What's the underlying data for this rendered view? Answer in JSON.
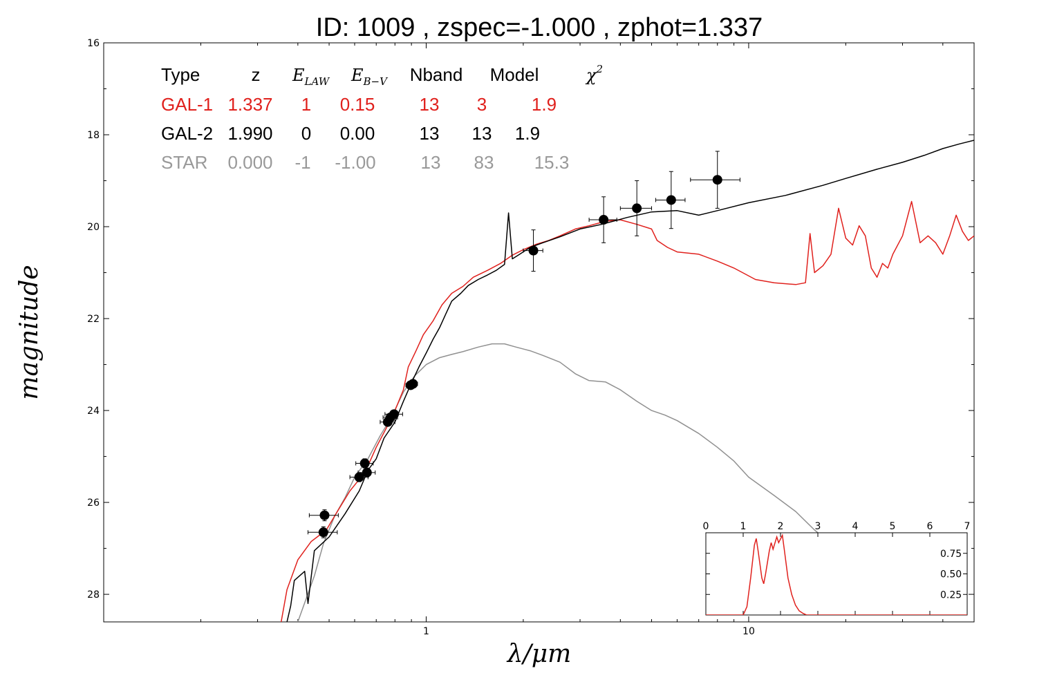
{
  "chart_data": {
    "type": "line",
    "title": "ID:  1009  , zspec=-1.000 , zphot=1.337",
    "xlabel": "λ/μm",
    "ylabel": "magnitude",
    "x_scale": "log",
    "xlim": [
      0.1,
      50
    ],
    "ylim": [
      28.6,
      16
    ],
    "y_inverted": true,
    "x_ticks": [
      {
        "value": 1,
        "label": "1"
      },
      {
        "value": 10,
        "label": "10"
      }
    ],
    "y_ticks": [
      {
        "value": 16,
        "label": "16"
      },
      {
        "value": 18,
        "label": "18"
      },
      {
        "value": 20,
        "label": "20"
      },
      {
        "value": 22,
        "label": "22"
      },
      {
        "value": 24,
        "label": "24"
      },
      {
        "value": 26,
        "label": "26"
      },
      {
        "value": 28,
        "label": "28"
      }
    ],
    "colors": {
      "gal1": "#e0201c",
      "gal2": "#000000",
      "star": "#909090",
      "points": "#000000"
    },
    "fit_table": {
      "headers": [
        {
          "text": "Type",
          "math": false
        },
        {
          "text": "z",
          "math": false
        },
        {
          "text": "E",
          "sub": "LAW",
          "math": true
        },
        {
          "text": "E",
          "sub": "B−V",
          "math": true
        },
        {
          "text": "Nband",
          "math": false
        },
        {
          "text": "Model",
          "math": false
        },
        {
          "text": "χ",
          "sup": "2",
          "math": true
        }
      ],
      "rows": [
        {
          "color": "#e0201c",
          "cells": [
            "GAL-1",
            "1.337",
            "1",
            "0.15",
            "13",
            "3",
            "1.9"
          ]
        },
        {
          "color": "#000000",
          "cells": [
            "GAL-2",
            "1.990",
            "0",
            "0.00",
            "13",
            "13",
            "1.9"
          ]
        },
        {
          "color": "#999999",
          "cells": [
            "STAR",
            "0.000",
            "-1",
            "-1.00",
            "13",
            "83",
            "15.3"
          ]
        }
      ]
    },
    "observations": [
      {
        "x": 0.48,
        "y": 26.65,
        "xerr": 0.05,
        "yerr": 0.12
      },
      {
        "x": 0.484,
        "y": 26.28,
        "xerr": 0.05,
        "yerr": 0.12
      },
      {
        "x": 0.62,
        "y": 25.45,
        "xerr": 0.04,
        "yerr": 0.1
      },
      {
        "x": 0.645,
        "y": 25.15,
        "xerr": 0.04,
        "yerr": 0.1
      },
      {
        "x": 0.655,
        "y": 25.35,
        "xerr": 0.04,
        "yerr": 0.1
      },
      {
        "x": 0.76,
        "y": 24.25,
        "xerr": 0.04,
        "yerr": 0.08
      },
      {
        "x": 0.775,
        "y": 24.15,
        "xerr": 0.04,
        "yerr": 0.08
      },
      {
        "x": 0.795,
        "y": 24.08,
        "xerr": 0.05,
        "yerr": 0.08
      },
      {
        "x": 0.895,
        "y": 23.45,
        "xerr": 0.03,
        "yerr": 0.06
      },
      {
        "x": 0.91,
        "y": 23.42,
        "xerr": 0.03,
        "yerr": 0.06
      },
      {
        "x": 2.15,
        "y": 20.52,
        "xerr": 0.15,
        "yerr": 0.45
      },
      {
        "x": 3.55,
        "y": 19.85,
        "xerr": 0.35,
        "yerr": 0.5
      },
      {
        "x": 4.5,
        "y": 19.6,
        "xerr": 0.5,
        "yerr": 0.6
      },
      {
        "x": 5.75,
        "y": 19.42,
        "xerr": 0.6,
        "yerr": 0.62
      },
      {
        "x": 8.0,
        "y": 18.98,
        "xerr": 1.4,
        "yerr": 0.62
      }
    ],
    "series": [
      {
        "name": "GAL-1",
        "color": "#e0201c",
        "points": [
          [
            0.355,
            28.6
          ],
          [
            0.37,
            27.9
          ],
          [
            0.4,
            27.25
          ],
          [
            0.44,
            26.85
          ],
          [
            0.49,
            26.6
          ],
          [
            0.53,
            26.2
          ],
          [
            0.58,
            25.75
          ],
          [
            0.62,
            25.5
          ],
          [
            0.66,
            25.2
          ],
          [
            0.7,
            24.8
          ],
          [
            0.75,
            24.4
          ],
          [
            0.8,
            24.0
          ],
          [
            0.85,
            23.55
          ],
          [
            0.88,
            23.05
          ],
          [
            0.93,
            22.7
          ],
          [
            0.98,
            22.35
          ],
          [
            1.05,
            22.05
          ],
          [
            1.12,
            21.7
          ],
          [
            1.2,
            21.45
          ],
          [
            1.3,
            21.3
          ],
          [
            1.4,
            21.1
          ],
          [
            1.55,
            20.95
          ],
          [
            1.7,
            20.8
          ],
          [
            1.85,
            20.62
          ],
          [
            2.0,
            20.5
          ],
          [
            2.2,
            20.38
          ],
          [
            2.4,
            20.3
          ],
          [
            2.6,
            20.2
          ],
          [
            2.9,
            20.05
          ],
          [
            3.2,
            19.98
          ],
          [
            3.6,
            19.88
          ],
          [
            4.0,
            19.85
          ],
          [
            4.5,
            19.95
          ],
          [
            5.0,
            20.05
          ],
          [
            5.2,
            20.3
          ],
          [
            5.6,
            20.45
          ],
          [
            6.0,
            20.55
          ],
          [
            7.0,
            20.6
          ],
          [
            8.0,
            20.75
          ],
          [
            9.0,
            20.9
          ],
          [
            10.5,
            21.15
          ],
          [
            12.0,
            21.22
          ],
          [
            14.0,
            21.26
          ],
          [
            15.0,
            21.22
          ],
          [
            15.5,
            20.15
          ],
          [
            16.0,
            21.0
          ],
          [
            17.0,
            20.85
          ],
          [
            18.0,
            20.6
          ],
          [
            19.0,
            19.6
          ],
          [
            20.0,
            20.25
          ],
          [
            21.0,
            20.4
          ],
          [
            22.0,
            19.98
          ],
          [
            23.0,
            20.2
          ],
          [
            24.0,
            20.9
          ],
          [
            25.0,
            21.1
          ],
          [
            26.0,
            20.8
          ],
          [
            27.0,
            20.9
          ],
          [
            28.0,
            20.6
          ],
          [
            30.0,
            20.2
          ],
          [
            32.0,
            19.45
          ],
          [
            34.0,
            20.35
          ],
          [
            36.0,
            20.2
          ],
          [
            38.0,
            20.35
          ],
          [
            40.0,
            20.6
          ],
          [
            42.0,
            20.2
          ],
          [
            44.0,
            19.75
          ],
          [
            46.0,
            20.1
          ],
          [
            48.0,
            20.3
          ],
          [
            50.0,
            20.2
          ]
        ]
      },
      {
        "name": "GAL-2",
        "color": "#000000",
        "points": [
          [
            0.37,
            28.6
          ],
          [
            0.38,
            28.25
          ],
          [
            0.39,
            27.7
          ],
          [
            0.42,
            27.5
          ],
          [
            0.43,
            28.2
          ],
          [
            0.45,
            27.05
          ],
          [
            0.5,
            26.75
          ],
          [
            0.56,
            26.25
          ],
          [
            0.62,
            25.75
          ],
          [
            0.66,
            25.3
          ],
          [
            0.7,
            25.05
          ],
          [
            0.74,
            24.6
          ],
          [
            0.8,
            24.25
          ],
          [
            0.85,
            23.8
          ],
          [
            0.9,
            23.4
          ],
          [
            0.95,
            23.05
          ],
          [
            1.0,
            22.75
          ],
          [
            1.05,
            22.45
          ],
          [
            1.1,
            22.2
          ],
          [
            1.15,
            21.9
          ],
          [
            1.2,
            21.62
          ],
          [
            1.28,
            21.45
          ],
          [
            1.35,
            21.28
          ],
          [
            1.45,
            21.15
          ],
          [
            1.55,
            21.05
          ],
          [
            1.65,
            20.95
          ],
          [
            1.75,
            20.82
          ],
          [
            1.8,
            19.7
          ],
          [
            1.85,
            20.7
          ],
          [
            1.95,
            20.6
          ],
          [
            2.1,
            20.45
          ],
          [
            2.3,
            20.35
          ],
          [
            2.6,
            20.22
          ],
          [
            3.0,
            20.05
          ],
          [
            3.5,
            19.95
          ],
          [
            4.2,
            19.8
          ],
          [
            5.0,
            19.68
          ],
          [
            6.0,
            19.65
          ],
          [
            7.0,
            19.75
          ],
          [
            8.0,
            19.65
          ],
          [
            10.0,
            19.48
          ],
          [
            13.0,
            19.32
          ],
          [
            17.0,
            19.1
          ],
          [
            20.0,
            18.95
          ],
          [
            25.0,
            18.75
          ],
          [
            30.0,
            18.6
          ],
          [
            35.0,
            18.45
          ],
          [
            40.0,
            18.3
          ],
          [
            45.0,
            18.2
          ],
          [
            50.0,
            18.12
          ]
        ]
      },
      {
        "name": "STAR",
        "color": "#909090",
        "points": [
          [
            0.4,
            28.6
          ],
          [
            0.45,
            27.6
          ],
          [
            0.48,
            26.9
          ],
          [
            0.52,
            26.3
          ],
          [
            0.56,
            25.9
          ],
          [
            0.6,
            25.45
          ],
          [
            0.66,
            25.05
          ],
          [
            0.72,
            24.55
          ],
          [
            0.78,
            24.15
          ],
          [
            0.85,
            23.6
          ],
          [
            0.92,
            23.25
          ],
          [
            1.0,
            23.0
          ],
          [
            1.1,
            22.85
          ],
          [
            1.2,
            22.78
          ],
          [
            1.3,
            22.72
          ],
          [
            1.45,
            22.62
          ],
          [
            1.6,
            22.55
          ],
          [
            1.75,
            22.55
          ],
          [
            1.9,
            22.62
          ],
          [
            2.1,
            22.7
          ],
          [
            2.3,
            22.8
          ],
          [
            2.6,
            22.95
          ],
          [
            2.9,
            23.2
          ],
          [
            3.2,
            23.35
          ],
          [
            3.6,
            23.38
          ],
          [
            4.0,
            23.55
          ],
          [
            4.5,
            23.8
          ],
          [
            5.0,
            24.0
          ],
          [
            5.5,
            24.1
          ],
          [
            6.0,
            24.22
          ],
          [
            7.0,
            24.5
          ],
          [
            8.0,
            24.8
          ],
          [
            9.0,
            25.1
          ],
          [
            10.0,
            25.45
          ],
          [
            12.0,
            25.85
          ],
          [
            14.0,
            26.2
          ],
          [
            16.0,
            26.6
          ],
          [
            17.0,
            26.75
          ]
        ]
      }
    ],
    "inset": {
      "type": "line",
      "xlim": [
        0,
        7
      ],
      "ylim": [
        0,
        1
      ],
      "x_ticks": [
        {
          "value": 0,
          "label": "0"
        },
        {
          "value": 1,
          "label": "1"
        },
        {
          "value": 2,
          "label": "2"
        },
        {
          "value": 3,
          "label": "3"
        },
        {
          "value": 4,
          "label": "4"
        },
        {
          "value": 5,
          "label": "5"
        },
        {
          "value": 6,
          "label": "6"
        },
        {
          "value": 7,
          "label": "7"
        }
      ],
      "y_ticks": [
        {
          "value": 0.25,
          "label": "0.25"
        },
        {
          "value": 0.5,
          "label": "0.50"
        },
        {
          "value": 0.75,
          "label": "0.75"
        }
      ],
      "color": "#e0201c",
      "points": [
        [
          0,
          0
        ],
        [
          1.0,
          0
        ],
        [
          1.1,
          0.1
        ],
        [
          1.2,
          0.45
        ],
        [
          1.3,
          0.85
        ],
        [
          1.35,
          0.93
        ],
        [
          1.4,
          0.78
        ],
        [
          1.5,
          0.45
        ],
        [
          1.55,
          0.38
        ],
        [
          1.6,
          0.5
        ],
        [
          1.7,
          0.78
        ],
        [
          1.75,
          0.88
        ],
        [
          1.8,
          0.8
        ],
        [
          1.9,
          0.95
        ],
        [
          1.95,
          0.88
        ],
        [
          2.05,
          0.97
        ],
        [
          2.1,
          0.8
        ],
        [
          2.2,
          0.45
        ],
        [
          2.3,
          0.25
        ],
        [
          2.4,
          0.12
        ],
        [
          2.5,
          0.05
        ],
        [
          2.6,
          0.02
        ],
        [
          2.7,
          0
        ],
        [
          7,
          0
        ]
      ]
    }
  }
}
